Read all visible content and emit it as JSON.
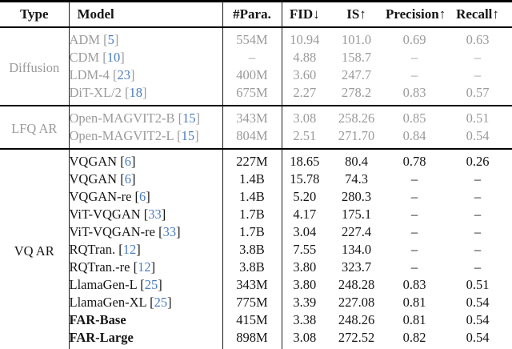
{
  "header": {
    "columns": [
      "Type",
      "Model",
      "#Para.",
      "FID↓",
      "IS↑",
      "Precision↑",
      "Recall↑"
    ]
  },
  "punctuation": {
    "cite_open": "[",
    "cite_close": "]"
  },
  "colors": {
    "text": "#151515",
    "muted": "#9b9b9b",
    "citation": "#4a7dbe",
    "rule": "#000000"
  },
  "groups": [
    {
      "type": "Diffusion",
      "style": "muted",
      "rows": [
        {
          "model": "ADM",
          "cite": "5",
          "para": "554M",
          "fid": "10.94",
          "is": "101.0",
          "prec": "0.69",
          "rec": "0.63"
        },
        {
          "model": "CDM",
          "cite": "10",
          "para": "–",
          "fid": "4.88",
          "is": "158.7",
          "prec": "–",
          "rec": "–"
        },
        {
          "model": "LDM-4",
          "cite": "23",
          "para": "400M",
          "fid": "3.60",
          "is": "247.7",
          "prec": "–",
          "rec": "–"
        },
        {
          "model": "DiT-XL/2",
          "cite": "18",
          "para": "675M",
          "fid": "2.27",
          "is": "278.2",
          "prec": "0.83",
          "rec": "0.57"
        }
      ]
    },
    {
      "type": "LFQ AR",
      "style": "muted",
      "rows": [
        {
          "model": "Open-MAGVIT2-B",
          "cite": "15",
          "para": "343M",
          "fid": "3.08",
          "is": "258.26",
          "prec": "0.85",
          "rec": "0.51"
        },
        {
          "model": "Open-MAGVIT2-L",
          "cite": "15",
          "para": "804M",
          "fid": "2.51",
          "is": "271.70",
          "prec": "0.84",
          "rec": "0.54"
        }
      ]
    },
    {
      "type": "VQ AR",
      "style": "normal",
      "rows": [
        {
          "model": "VQGAN",
          "cite": "6",
          "para": "227M",
          "fid": "18.65",
          "is": "80.4",
          "prec": "0.78",
          "rec": "0.26"
        },
        {
          "model": "VQGAN",
          "cite": "6",
          "para": "1.4B",
          "fid": "15.78",
          "is": "74.3",
          "prec": "–",
          "rec": "–"
        },
        {
          "model": "VQGAN-re",
          "cite": "6",
          "para": "1.4B",
          "fid": "5.20",
          "is": "280.3",
          "prec": "–",
          "rec": "–"
        },
        {
          "model": "ViT-VQGAN",
          "cite": "33",
          "para": "1.7B",
          "fid": "4.17",
          "is": "175.1",
          "prec": "–",
          "rec": "–"
        },
        {
          "model": "ViT-VQGAN-re",
          "cite": "33",
          "para": "1.7B",
          "fid": "3.04",
          "is": "227.4",
          "prec": "–",
          "rec": "–"
        },
        {
          "model": "RQTran.",
          "cite": "12",
          "para": "3.8B",
          "fid": "7.55",
          "is": "134.0",
          "prec": "–",
          "rec": "–"
        },
        {
          "model": "RQTran.-re",
          "cite": "12",
          "para": "3.8B",
          "fid": "3.80",
          "is": "323.7",
          "prec": "–",
          "rec": "–"
        },
        {
          "model": "LlamaGen-L",
          "cite": "25",
          "para": "343M",
          "fid": "3.80",
          "is": "248.28",
          "prec": "0.83",
          "rec": "0.51"
        },
        {
          "model": "LlamaGen-XL",
          "cite": "25",
          "para": "775M",
          "fid": "3.39",
          "is": "227.08",
          "prec": "0.81",
          "rec": "0.54"
        },
        {
          "model": "FAR-Base",
          "cite": null,
          "bold": true,
          "para": "415M",
          "fid": "3.38",
          "is": "248.26",
          "prec": "0.81",
          "rec": "0.54"
        },
        {
          "model": "FAR-Large",
          "cite": null,
          "bold": true,
          "para": "898M",
          "fid": "3.08",
          "is": "272.52",
          "prec": "0.82",
          "rec": "0.54"
        }
      ]
    }
  ]
}
